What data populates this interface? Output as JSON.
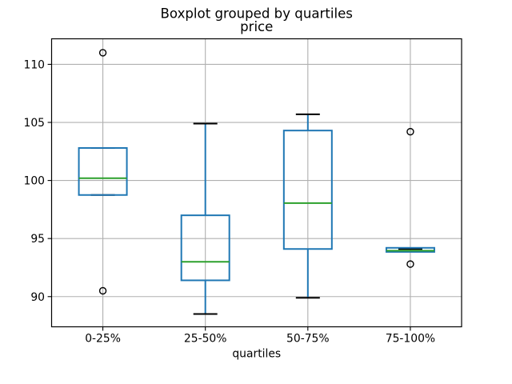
{
  "chart_data": {
    "type": "boxplot",
    "title": "Boxplot grouped by quartiles",
    "subtitle": "price",
    "xlabel": "quartiles",
    "ylabel": "",
    "categories": [
      "0-25%",
      "25-50%",
      "50-75%",
      "75-100%"
    ],
    "yticks": [
      90,
      95,
      100,
      105,
      110
    ],
    "ylim": [
      87.4,
      112.2
    ],
    "grid": true,
    "legend": false,
    "series": [
      {
        "category": "0-25%",
        "whisker_low": 98.75,
        "q1": 98.75,
        "median": 100.2,
        "q3": 102.8,
        "whisker_high": 102.8,
        "fliers": [
          111.0,
          90.5
        ]
      },
      {
        "category": "25-50%",
        "whisker_low": 88.5,
        "q1": 91.4,
        "median": 93.0,
        "q3": 97.0,
        "whisker_high": 104.9,
        "fliers": []
      },
      {
        "category": "50-75%",
        "whisker_low": 89.9,
        "q1": 94.1,
        "median": 98.05,
        "q3": 104.3,
        "whisker_high": 105.7,
        "fliers": []
      },
      {
        "category": "75-100%",
        "whisker_low": 93.9,
        "q1": 93.85,
        "median": 93.95,
        "q3": 94.2,
        "whisker_high": 94.1,
        "fliers": [
          104.2,
          92.8
        ]
      }
    ],
    "colors": {
      "box": "#1f77b4",
      "whisker": "#1f77b4",
      "median": "#2ca02c",
      "cap": "#000000",
      "flier": "#000000",
      "grid": "#b0b0b0",
      "axis": "#000000",
      "background": "#ffffff",
      "text": "#000000"
    }
  }
}
